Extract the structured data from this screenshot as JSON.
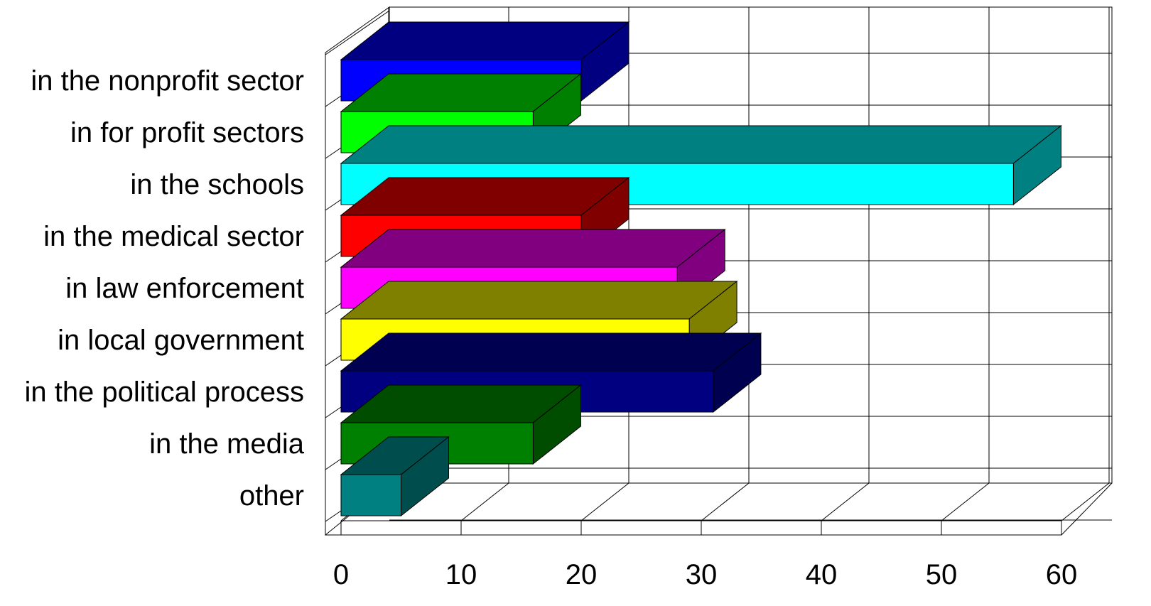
{
  "chart_data": {
    "type": "bar",
    "orientation": "horizontal",
    "style": "3d",
    "categories": [
      "in the nonprofit sector",
      "in for profit sectors",
      "in the schools",
      "in the medical sector",
      "in law enforcement",
      "in local government",
      "in the political process",
      "in the media",
      "other"
    ],
    "values": [
      20,
      16,
      56,
      20,
      28,
      29,
      31,
      16,
      5
    ],
    "colors": {
      "front": [
        "#0000FF",
        "#00FF00",
        "#00FFFF",
        "#FF0000",
        "#FF00FF",
        "#FFFF00",
        "#000080",
        "#008000",
        "#008080"
      ],
      "top": [
        "#000080",
        "#008000",
        "#008080",
        "#800000",
        "#800080",
        "#808000",
        "#000050",
        "#004D00",
        "#004D4D"
      ],
      "side": [
        "#000080",
        "#008000",
        "#008080",
        "#800000",
        "#800080",
        "#808000",
        "#000050",
        "#004D00",
        "#004D4D"
      ]
    },
    "xlim": [
      0,
      60
    ],
    "xticks": [
      "0",
      "10",
      "20",
      "30",
      "40",
      "50",
      "60"
    ],
    "title": "",
    "xlabel": "",
    "ylabel": "",
    "grid": true,
    "legend": "none"
  }
}
